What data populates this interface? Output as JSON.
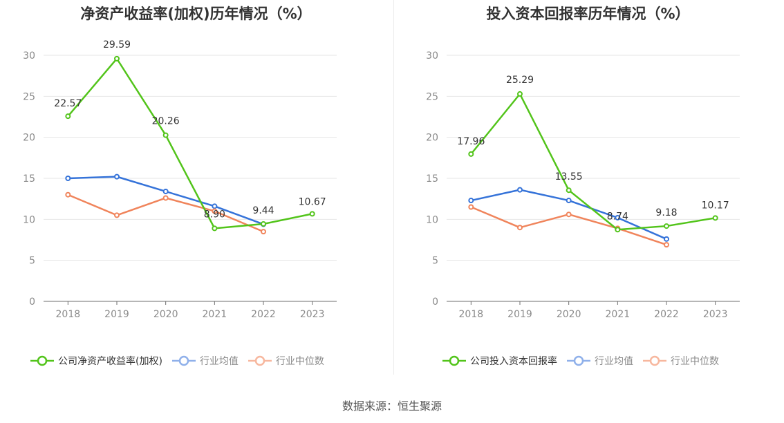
{
  "source_label": "数据来源：恒生聚源",
  "chart_data": [
    {
      "type": "line",
      "title": "净资产收益率(加权)历年情况（%）",
      "categories": [
        "2018",
        "2019",
        "2020",
        "2021",
        "2022",
        "2023"
      ],
      "ylim": [
        0,
        30
      ],
      "yticks": [
        0,
        5,
        10,
        15,
        20,
        25,
        30
      ],
      "grid": true,
      "legend_position": "bottom",
      "series": [
        {
          "name": "公司净资产收益率(加权)",
          "color": "#52c41a",
          "values": [
            22.57,
            29.59,
            20.26,
            8.9,
            9.44,
            10.67
          ],
          "labels": [
            "22.57",
            "29.59",
            "20.26",
            "8.90",
            "9.44",
            "10.67"
          ]
        },
        {
          "name": "行业均值",
          "color": "#3573d9",
          "legend_color": "#8fb0ea",
          "values": [
            15.0,
            15.2,
            13.4,
            11.6,
            9.4,
            null
          ]
        },
        {
          "name": "行业中位数",
          "color": "#f0845b",
          "legend_color": "#f7b79e",
          "values": [
            13.0,
            10.5,
            12.6,
            11.0,
            8.5,
            null
          ]
        }
      ]
    },
    {
      "type": "line",
      "title": "投入资本回报率历年情况（%）",
      "categories": [
        "2018",
        "2019",
        "2020",
        "2021",
        "2022",
        "2023"
      ],
      "ylim": [
        0,
        30
      ],
      "yticks": [
        0,
        5,
        10,
        15,
        20,
        25,
        30
      ],
      "grid": true,
      "legend_position": "bottom",
      "series": [
        {
          "name": "公司投入资本回报率",
          "color": "#52c41a",
          "values": [
            17.96,
            25.29,
            13.55,
            8.74,
            9.18,
            10.17
          ],
          "labels": [
            "17.96",
            "25.29",
            "13.55",
            "8.74",
            "9.18",
            "10.17"
          ]
        },
        {
          "name": "行业均值",
          "color": "#3573d9",
          "legend_color": "#8fb0ea",
          "values": [
            12.3,
            13.6,
            12.3,
            10.2,
            7.6,
            null
          ]
        },
        {
          "name": "行业中位数",
          "color": "#f0845b",
          "legend_color": "#f7b79e",
          "values": [
            11.5,
            9.0,
            10.6,
            8.9,
            6.9,
            null
          ]
        }
      ]
    }
  ]
}
